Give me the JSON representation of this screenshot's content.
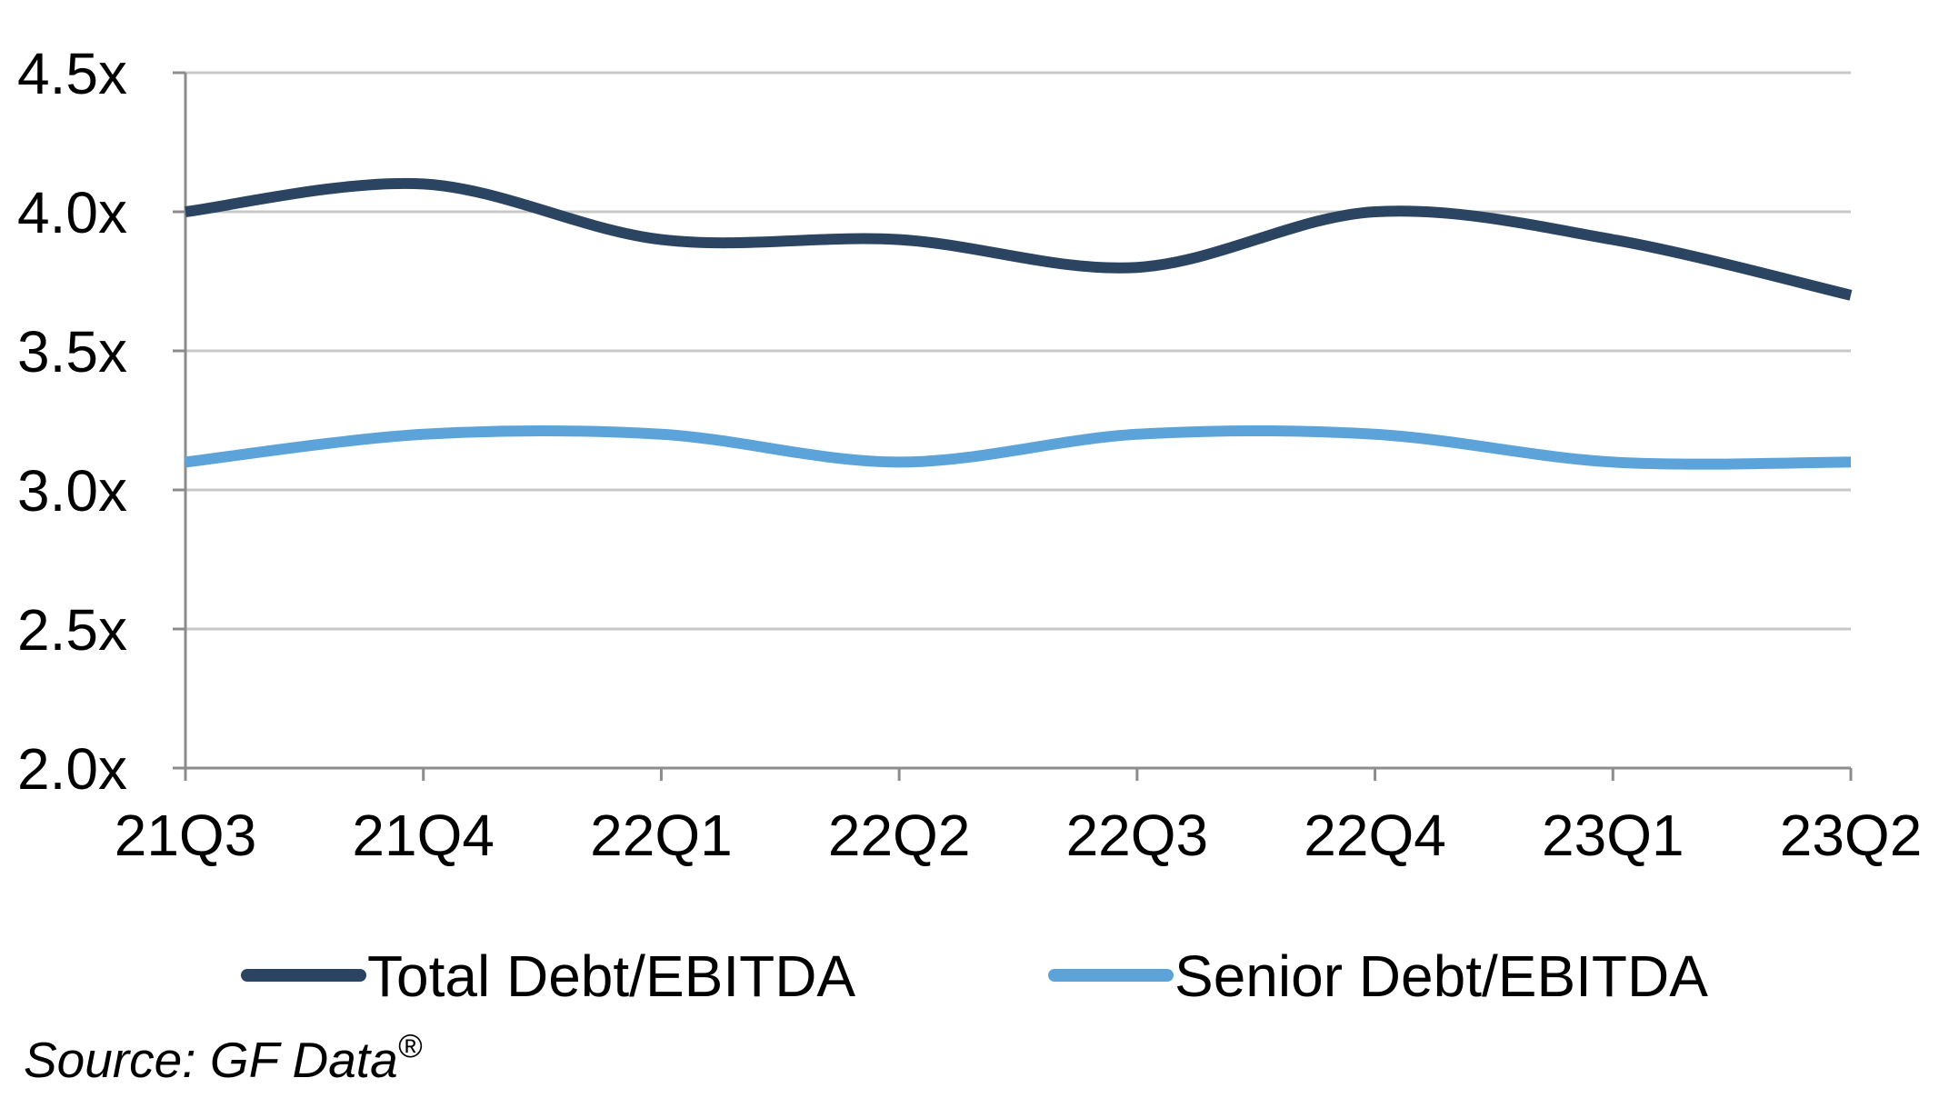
{
  "chart_data": {
    "type": "line",
    "categories": [
      "21Q3",
      "21Q4",
      "22Q1",
      "22Q2",
      "22Q3",
      "22Q4",
      "23Q1",
      "23Q2"
    ],
    "series": [
      {
        "name": "Total Debt/EBITDA",
        "values": [
          4.0,
          4.1,
          3.9,
          3.9,
          3.8,
          4.0,
          3.9,
          3.7
        ],
        "color": "#2b4461"
      },
      {
        "name": "Senior Debt/EBITDA",
        "values": [
          3.1,
          3.2,
          3.2,
          3.1,
          3.2,
          3.2,
          3.1,
          3.1
        ],
        "color": "#5ba3d9"
      }
    ],
    "yticks": [
      "2.0x",
      "2.5x",
      "3.0x",
      "3.5x",
      "4.0x",
      "4.5x"
    ],
    "ylim": [
      2.0,
      4.5
    ],
    "grid": true,
    "gridline_color": "#c8c8c8",
    "axis_color": "#8c8c8c",
    "legend_position": "bottom",
    "smooth_lines": true
  },
  "source": {
    "text": "Source: GF Data",
    "registered_mark": "®"
  }
}
